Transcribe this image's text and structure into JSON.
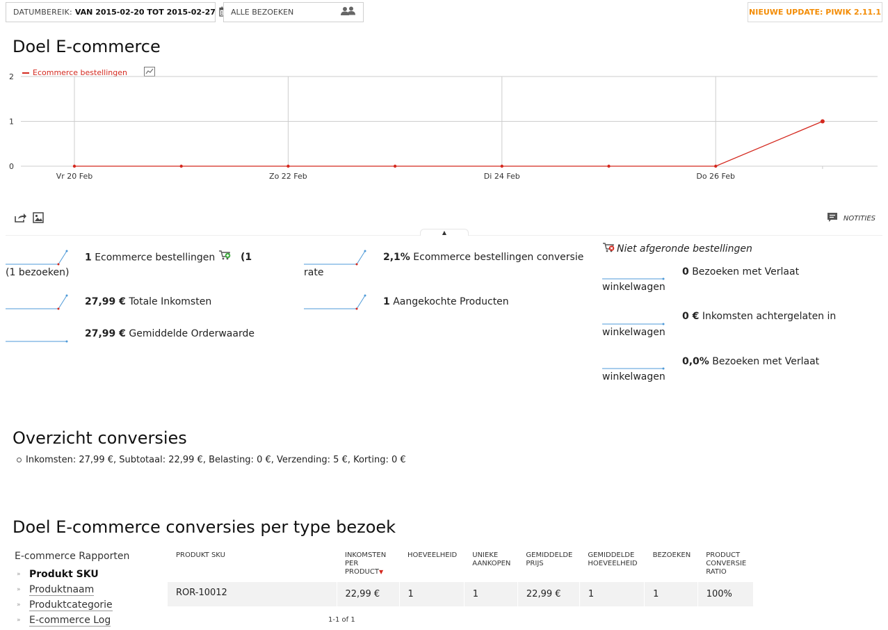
{
  "topbar": {
    "date_label": "DATUMBEREIK:",
    "date_value": "VAN 2015-02-20 TOT 2015-02-27",
    "segment": "ALLE BEZOEKEN",
    "update": "NIEUWE UPDATE: PIWIK 2.11.1"
  },
  "colors": {
    "accent": "#d4291f",
    "update": "#f38c05",
    "spark_blue": "#4e9ad8",
    "spark_red": "#d4291f"
  },
  "page_title": "Doel E-commerce",
  "chart_data": {
    "type": "line",
    "title": "",
    "xlabel": "",
    "ylabel": "",
    "ylim": [
      0,
      2
    ],
    "yticks": [
      0,
      1,
      2
    ],
    "x": [
      "2015-02-20",
      "2015-02-21",
      "2015-02-22",
      "2015-02-23",
      "2015-02-24",
      "2015-02-25",
      "2015-02-26",
      "2015-02-27"
    ],
    "tick_labels": [
      "Vr 20 Feb",
      "Zo 22 Feb",
      "Di 24 Feb",
      "Do 26 Feb"
    ],
    "series": [
      {
        "name": "Ecommerce bestellingen",
        "values": [
          0,
          0,
          0,
          0,
          0,
          0,
          0,
          1
        ]
      }
    ],
    "grid": true,
    "legend": "top-left"
  },
  "notes_label": "NOTITIES",
  "metrics_left": [
    {
      "value": "1",
      "text": "Ecommerce bestellingen",
      "extra": "(1 bezoeken)"
    },
    {
      "value": "27,99 €",
      "text": "Totale Inkomsten"
    },
    {
      "value": "27,99 €",
      "text": "Gemiddelde Orderwaarde"
    }
  ],
  "metrics_mid": [
    {
      "value": "2,1%",
      "text": "Ecommerce bestellingen conversie rate"
    },
    {
      "value": "1",
      "text": "Aangekochte Producten"
    }
  ],
  "abandoned": {
    "title": "Niet afgeronde bestellingen",
    "items": [
      {
        "value": "0",
        "text": "Bezoeken met Verlaat winkelwagen"
      },
      {
        "value": "0 €",
        "text": "Inkomsten achtergelaten in winkelwagen"
      },
      {
        "value": "0,0%",
        "text": "Bezoeken met Verlaat winkelwagen"
      }
    ]
  },
  "overview": {
    "title": "Overzicht conversies",
    "line": "Inkomsten: 27,99 €, Subtotaal: 22,99 €, Belasting: 0 €, Verzending: 5 €, Korting: 0 €"
  },
  "per_type": {
    "title": "Doel E-commerce conversies per type bezoek",
    "menu_head": "E-commerce Rapporten",
    "menu": [
      "Produkt SKU",
      "Produktnaam",
      "Produktcategorie",
      "E-commerce Log"
    ],
    "columns": [
      "PRODUKT SKU",
      "INKOMSTEN PER PRODUCT",
      "HOEVEELHEID",
      "UNIEKE AANKOPEN",
      "GEMIDDELDE PRIJS",
      "GEMIDDELDE HOEVEELHEID",
      "BEZOEKEN",
      "PRODUCT CONVERSIE RATIO"
    ],
    "rows": [
      [
        "ROR-10012",
        "22,99 €",
        "1",
        "1",
        "22,99 €",
        "1",
        "1",
        "100%"
      ]
    ],
    "pager": "1-1 of 1"
  }
}
